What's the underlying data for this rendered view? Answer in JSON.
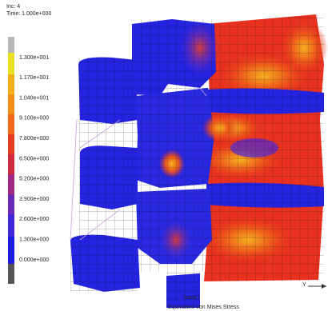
{
  "header": {
    "increment": "Inc:  4",
    "time": "Time:  1.000e+000"
  },
  "legend": {
    "labels": [
      "1.300e+001",
      "1.170e+001",
      "1.040e+001",
      "9.100e+000",
      "7.800e+000",
      "6.500e+000",
      "5.200e+000",
      "3.900e+000",
      "2.600e+000",
      "1.300e+000",
      "0.000e+000"
    ]
  },
  "footer": {
    "case": "lcase1",
    "quantity": "Equivalent Von Mises Stress"
  },
  "axis_triad": {
    "label": "Y"
  }
}
